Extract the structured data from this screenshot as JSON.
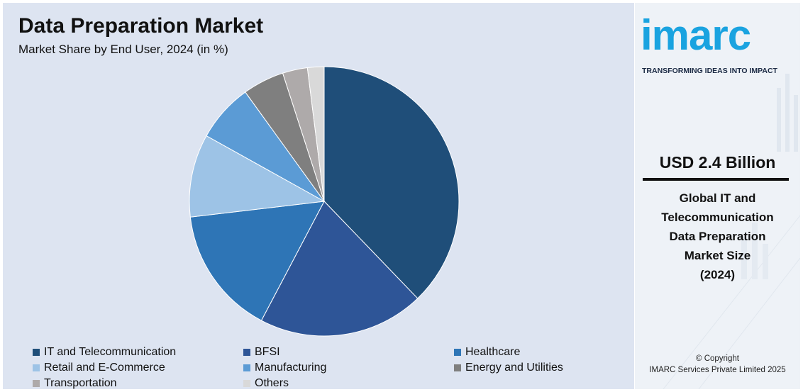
{
  "chart_data": {
    "type": "pie",
    "title": "Data Preparation Market",
    "subtitle": "Market Share by End User, 2024 (in %)",
    "start_angle_deg": 0,
    "direction": "clockwise",
    "legend_position": "bottom",
    "slices": [
      {
        "label": "IT and Telecommunication",
        "value": 38,
        "color": "#1f4e79"
      },
      {
        "label": "BFSI",
        "value": 20,
        "color": "#2e5597"
      },
      {
        "label": "Healthcare",
        "value": 15.5,
        "color": "#2e75b6"
      },
      {
        "label": "Retail and E-Commerce",
        "value": 10,
        "color": "#9dc3e6"
      },
      {
        "label": "Manufacturing",
        "value": 7,
        "color": "#5b9bd5"
      },
      {
        "label": "Energy and Utilities",
        "value": 5,
        "color": "#7f7f7f"
      },
      {
        "label": "Transportation",
        "value": 3,
        "color": "#aeaaaa"
      },
      {
        "label": "Others",
        "value": 2,
        "color": "#d9d9d9"
      }
    ]
  },
  "brand": {
    "logo_text": "imarc",
    "tagline": "TRANSFORMING IDEAS INTO IMPACT",
    "color": "#1aa3e0"
  },
  "highlight": {
    "value": "USD 2.4 Billion",
    "description_lines": [
      "Global IT and",
      "Telecommunication",
      "Data Preparation",
      "Market Size",
      "(2024)"
    ]
  },
  "footer": {
    "line1": "© Copyright",
    "line2": "IMARC Services Private Limited 2025"
  }
}
